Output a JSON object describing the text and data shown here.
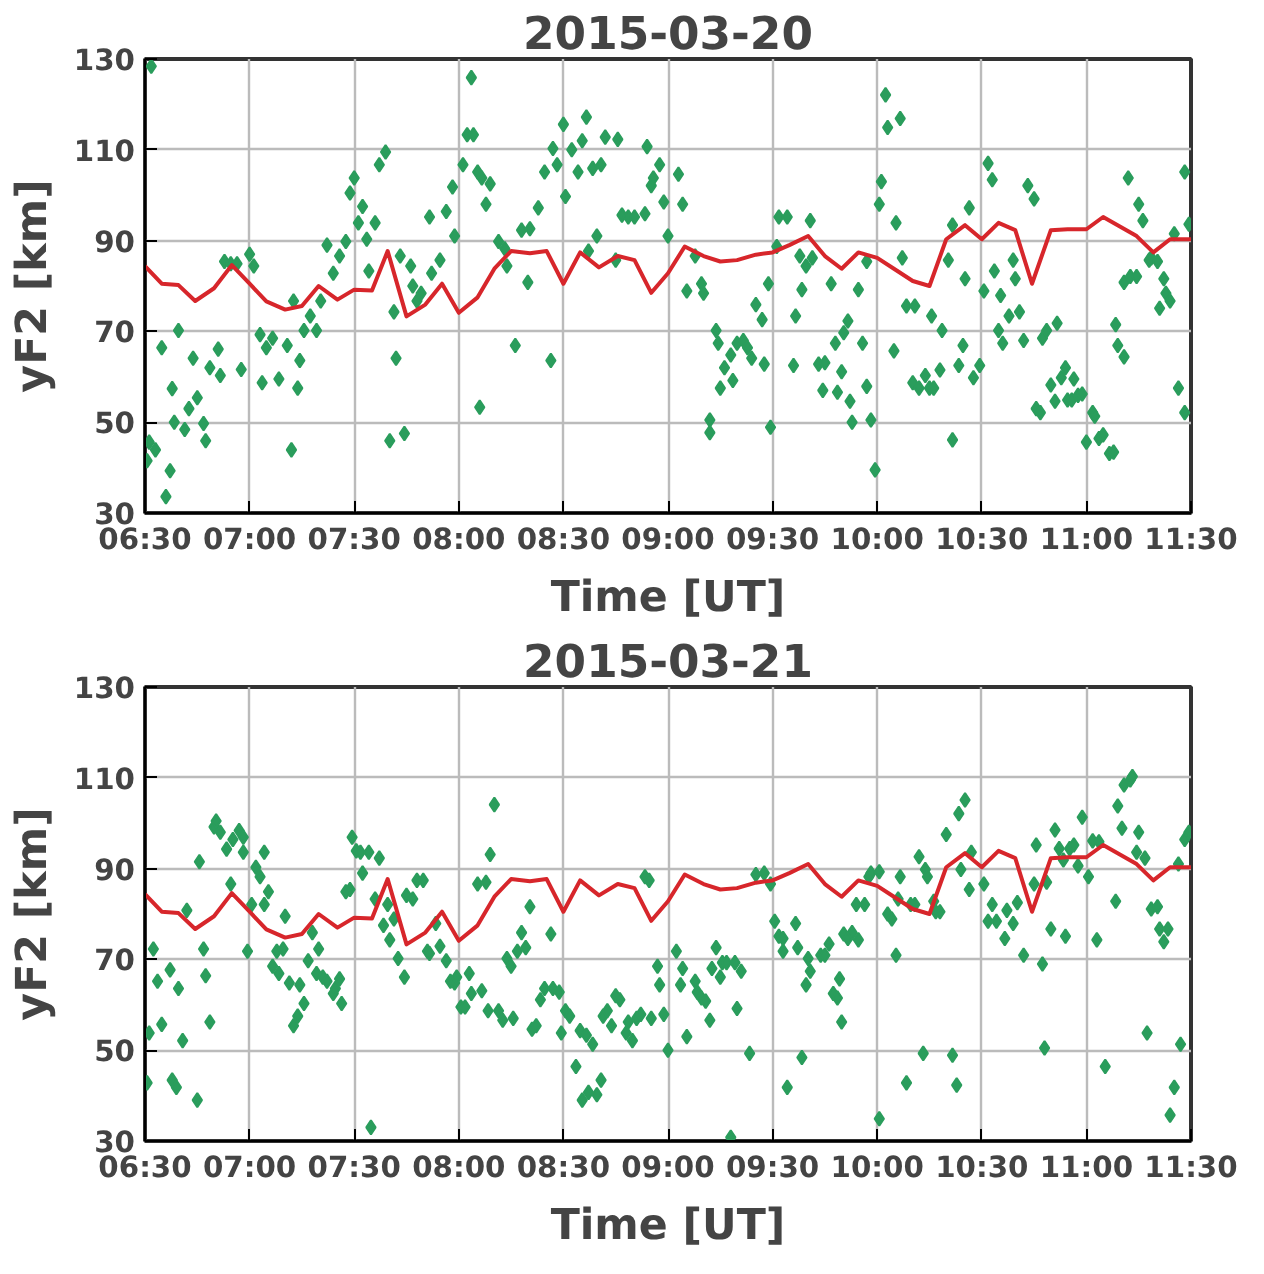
{
  "chart_data": [
    {
      "type": "scatter",
      "title": "2015-03-20",
      "xlabel": "Time [UT]",
      "ylabel": "yF2 [km]",
      "xlim": [
        6.5,
        11.5
      ],
      "ylim": [
        30,
        130
      ],
      "xticks": [
        {
          "value": 6.5,
          "label": "06:30"
        },
        {
          "value": 7.0,
          "label": "07:00"
        },
        {
          "value": 7.5,
          "label": "07:30"
        },
        {
          "value": 8.0,
          "label": "08:00"
        },
        {
          "value": 8.5,
          "label": "08:30"
        },
        {
          "value": 9.0,
          "label": "09:00"
        },
        {
          "value": 9.5,
          "label": "09:30"
        },
        {
          "value": 10.0,
          "label": "10:00"
        },
        {
          "value": 10.5,
          "label": "10:30"
        },
        {
          "value": 11.0,
          "label": "11:00"
        },
        {
          "value": 11.5,
          "label": "11:30"
        }
      ],
      "yticks": [
        30,
        50,
        70,
        90,
        110,
        130
      ],
      "grid": true,
      "line_style": "solid",
      "series": [
        {
          "marker": "diamond",
          "color": "#2a9d5c",
          "x": [
            6.53,
            6.52,
            6.55,
            6.51,
            6.6,
            6.62,
            6.58,
            6.63,
            6.64,
            6.66,
            6.69,
            6.71,
            6.73,
            6.75,
            6.78,
            6.79,
            6.81,
            6.85,
            6.86,
            6.88,
            6.91,
            6.94,
            6.96,
            7.0,
            7.02,
            7.05,
            7.06,
            7.08,
            7.11,
            7.14,
            7.18,
            7.2,
            7.21,
            7.23,
            7.24,
            7.26,
            7.29,
            7.32,
            7.34,
            7.37,
            7.4,
            7.43,
            7.46,
            7.48,
            7.5,
            7.52,
            7.54,
            7.56,
            7.57,
            7.6,
            7.62,
            7.65,
            7.67,
            7.69,
            7.7,
            7.72,
            7.74,
            7.77,
            7.78,
            7.8,
            7.82,
            7.86,
            7.87,
            7.91,
            7.94,
            7.97,
            7.98,
            8.02,
            8.04,
            8.06,
            8.07,
            8.1,
            8.09,
            8.11,
            8.13,
            8.15,
            8.19,
            8.22,
            8.23,
            8.27,
            8.3,
            8.33,
            8.34,
            8.38,
            8.41,
            8.44,
            8.45,
            8.47,
            8.5,
            8.51,
            8.54,
            8.57,
            8.59,
            8.61,
            8.62,
            8.64,
            8.66,
            8.68,
            8.7,
            8.75,
            8.76,
            8.78,
            8.81,
            8.84,
            8.89,
            8.9,
            8.92,
            8.93,
            8.96,
            8.98,
            9.0,
            9.05,
            9.07,
            9.09,
            9.13,
            9.16,
            9.17,
            9.2,
            9.2,
            9.23,
            9.24,
            9.25,
            9.27,
            9.3,
            9.31,
            9.33,
            9.36,
            9.38,
            9.4,
            9.42,
            9.45,
            9.46,
            9.48,
            9.49,
            9.52,
            9.53,
            9.57,
            9.6,
            9.61,
            9.63,
            9.64,
            9.66,
            9.68,
            9.69,
            9.72,
            9.74,
            9.75,
            9.78,
            9.8,
            9.81,
            9.83,
            9.84,
            9.86,
            9.87,
            9.88,
            9.91,
            9.93,
            9.95,
            9.95,
            9.97,
            9.99,
            10.01,
            10.02,
            10.04,
            10.05,
            10.09,
            10.11,
            10.12,
            10.08,
            10.14,
            10.17,
            10.18,
            10.2,
            10.23,
            10.25,
            10.26,
            10.27,
            10.3,
            10.31,
            10.34,
            10.36,
            10.36,
            10.39,
            10.41,
            10.42,
            10.44,
            10.46,
            10.49,
            10.51,
            10.53,
            10.55,
            10.56,
            10.58,
            10.59,
            10.6,
            10.63,
            10.65,
            10.66,
            10.68,
            10.7,
            10.72,
            10.75,
            10.76,
            10.78,
            10.79,
            10.81,
            10.83,
            10.85,
            10.86,
            10.88,
            10.9,
            10.91,
            10.93,
            10.94,
            10.96,
            10.98,
            11.0,
            11.03,
            11.04,
            11.06,
            11.08,
            11.11,
            11.13,
            11.14,
            11.15,
            11.18,
            11.18,
            11.2,
            11.21,
            11.24,
            11.25,
            11.27,
            11.3,
            11.31,
            11.34,
            11.35,
            11.37,
            11.38,
            11.4,
            11.42,
            11.44,
            11.47,
            11.47,
            11.49
          ],
          "values": [
            128.4,
            45.6,
            43.9,
            41.5,
            33.6,
            39.3,
            66.4,
            57.4,
            50,
            70.2,
            48.4,
            53,
            64.1,
            55.4,
            49.7,
            45.9,
            62,
            66.1,
            60.3,
            85.4,
            84.9,
            84.9,
            61.6,
            87,
            84.4,
            69.3,
            58.7,
            66.4,
            68.5,
            59.5,
            66.9,
            43.9,
            76.7,
            57.5,
            63.6,
            70.2,
            73.4,
            70.2,
            76.7,
            89,
            82.8,
            86.6,
            89.8,
            100.5,
            103.8,
            93.9,
            97.5,
            90.3,
            83.3,
            93.9,
            106.7,
            109.5,
            45.9,
            74.3,
            64.1,
            86.6,
            47.5,
            84.4,
            80,
            76.7,
            78.4,
            95.2,
            82.8,
            85.7,
            96.4,
            101.8,
            91,
            106.7,
            113.3,
            125.9,
            113.3,
            53.3,
            105.1,
            103.8,
            98,
            102.5,
            89.8,
            88.2,
            84.4,
            66.9,
            92.3,
            80.8,
            92.6,
            97.2,
            105.1,
            63.6,
            110.3,
            106.7,
            115.6,
            99.7,
            110,
            105.1,
            112,
            117.2,
            87.7,
            105.9,
            91,
            106.7,
            112.8,
            85.7,
            112.3,
            95.6,
            95.2,
            95.2,
            95.9,
            110.7,
            102.1,
            103.8,
            106.7,
            98.5,
            91,
            104.6,
            98,
            78.9,
            86.6,
            80.5,
            78.4,
            50.5,
            47.7,
            70.2,
            67.4,
            57.5,
            62,
            64.8,
            59.2,
            67.4,
            68,
            66.4,
            64.1,
            75.9,
            72.6,
            62.8,
            80.5,
            48.9,
            88.7,
            95.2,
            95.2,
            62.5,
            73.4,
            86.6,
            79.2,
            84.4,
            94.4,
            86.2,
            62.8,
            57,
            63.1,
            80.5,
            67.4,
            56.6,
            61.1,
            69.7,
            72.3,
            54.6,
            50,
            79.2,
            67.4,
            57.9,
            85.4,
            50.5,
            39.5,
            98,
            103,
            122.1,
            114.9,
            93.9,
            116.9,
            86.2,
            65.7,
            75.6,
            58.7,
            75.6,
            57.5,
            60.3,
            57.5,
            73.4,
            57.5,
            61.5,
            70.2,
            85.7,
            46.1,
            93.4,
            62.5,
            66.9,
            81.6,
            97.2,
            59.8,
            62.5,
            78.9,
            107,
            103.4,
            83.3,
            70.2,
            77.9,
            67.4,
            73.4,
            85.7,
            81.6,
            74.3,
            68,
            102.1,
            99.2,
            53,
            52.1,
            68.5,
            70.2,
            58.2,
            54.6,
            71.8,
            59.8,
            62,
            54.9,
            54.9,
            59.5,
            55.9,
            56.2,
            45.6,
            52.1,
            51.3,
            46.4,
            47.2,
            43.1,
            43.4,
            71.5,
            66.9,
            64.4,
            80.8,
            103.8,
            82.1,
            82.1,
            98,
            94.4,
            85.7,
            86.2,
            85.4,
            75.1,
            81.6,
            78.4,
            76.7,
            91.5,
            57.5,
            52.1,
            105.1,
            93.6
          ]
        },
        {
          "type": "line",
          "color": "#d7262b",
          "x": [
            6.5,
            6.58,
            6.66,
            6.74,
            6.83,
            6.915,
            7.0,
            7.08,
            7.17,
            7.25,
            7.33,
            7.42,
            7.5,
            7.585,
            7.66,
            7.75,
            7.84,
            7.92,
            8.0,
            8.09,
            8.17,
            8.25,
            8.34,
            8.42,
            8.5,
            8.58,
            8.67,
            8.76,
            8.84,
            8.92,
            9.0,
            9.08,
            9.17,
            9.25,
            9.33,
            9.42,
            9.5,
            9.58,
            9.67,
            9.75,
            9.83,
            9.91,
            10.0,
            10.08,
            10.17,
            10.25,
            10.33,
            10.42,
            10.5,
            10.58,
            10.66,
            10.74,
            10.83,
            10.91,
            11.0,
            11.08,
            11.16,
            11.24,
            11.32,
            11.4,
            11.5
          ],
          "values": [
            84.4,
            80.5,
            80.2,
            76.7,
            79.5,
            84.6,
            80.5,
            76.6,
            74.8,
            75.6,
            80,
            77,
            79.2,
            79,
            87.7,
            73.3,
            75.9,
            80.5,
            74.1,
            77.5,
            83.8,
            87.7,
            87.2,
            87.7,
            80.5,
            87.4,
            84.1,
            86.6,
            85.7,
            78.5,
            82.8,
            88.7,
            86.6,
            85.4,
            85.7,
            86.9,
            87.4,
            89,
            91,
            86.6,
            83.8,
            87.4,
            86.2,
            83.8,
            81.1,
            80,
            90.3,
            93.4,
            90.3,
            93.9,
            92.3,
            80.5,
            92.3,
            92.5,
            92.5,
            95.2,
            93.1,
            91,
            87.4,
            90.3,
            90.3
          ]
        }
      ]
    },
    {
      "type": "scatter",
      "title": "2015-03-21",
      "xlabel": "Time [UT]",
      "ylabel": "yF2 [km]",
      "xlim": [
        6.5,
        11.5
      ],
      "ylim": [
        30,
        130
      ],
      "xticks": [
        {
          "value": 6.5,
          "label": "06:30"
        },
        {
          "value": 7.0,
          "label": "07:00"
        },
        {
          "value": 7.5,
          "label": "07:30"
        },
        {
          "value": 8.0,
          "label": "08:00"
        },
        {
          "value": 8.5,
          "label": "08:30"
        },
        {
          "value": 9.0,
          "label": "09:00"
        },
        {
          "value": 9.5,
          "label": "09:30"
        },
        {
          "value": 10.0,
          "label": "10:00"
        },
        {
          "value": 10.5,
          "label": "10:30"
        },
        {
          "value": 11.0,
          "label": "11:00"
        },
        {
          "value": 11.5,
          "label": "11:30"
        }
      ],
      "yticks": [
        30,
        50,
        70,
        90,
        110,
        130
      ],
      "grid": true,
      "line_style": "solid",
      "series": [
        {
          "marker": "diamond",
          "color": "#2a9d5c",
          "x": [
            6.51,
            6.52,
            6.54,
            6.56,
            6.58,
            6.62,
            6.63,
            6.65,
            6.66,
            6.68,
            6.7,
            6.75,
            6.76,
            6.78,
            6.79,
            6.81,
            6.83,
            6.84,
            6.86,
            6.89,
            6.91,
            6.92,
            6.95,
            6.97,
            6.97,
            6.99,
            7.01,
            7.03,
            7.05,
            7.07,
            7.07,
            7.09,
            7.11,
            7.13,
            7.14,
            7.16,
            7.17,
            7.19,
            7.21,
            7.23,
            7.24,
            7.26,
            7.28,
            7.3,
            7.32,
            7.33,
            7.35,
            7.37,
            7.4,
            7.41,
            7.43,
            7.44,
            7.46,
            7.48,
            7.49,
            7.51,
            7.53,
            7.54,
            7.57,
            7.58,
            7.6,
            7.62,
            7.64,
            7.66,
            7.67,
            7.69,
            7.71,
            7.74,
            7.75,
            7.78,
            7.8,
            7.83,
            7.85,
            7.86,
            7.89,
            7.91,
            7.94,
            7.96,
            7.98,
            7.99,
            8.01,
            8.03,
            8.05,
            8.06,
            8.09,
            8.11,
            8.13,
            8.14,
            8.15,
            8.17,
            8.19,
            8.21,
            8.23,
            8.25,
            8.26,
            8.28,
            8.3,
            8.32,
            8.34,
            8.35,
            8.37,
            8.39,
            8.41,
            8.44,
            8.45,
            8.48,
            8.49,
            8.51,
            8.53,
            8.56,
            8.58,
            8.59,
            8.61,
            8.62,
            8.64,
            8.66,
            8.68,
            8.69,
            8.71,
            8.73,
            8.75,
            8.77,
            8.8,
            8.81,
            8.83,
            8.85,
            8.87,
            8.89,
            8.91,
            8.92,
            8.95,
            8.96,
            9.0,
            8.98,
            9.04,
            9.06,
            9.07,
            9.09,
            9.13,
            9.14,
            9.16,
            9.18,
            9.2,
            9.21,
            9.23,
            9.25,
            9.26,
            9.28,
            9.3,
            9.32,
            9.33,
            9.35,
            9.39,
            9.42,
            9.46,
            9.49,
            9.51,
            9.53,
            9.55,
            9.55,
            9.57,
            9.61,
            9.62,
            9.64,
            9.66,
            9.67,
            9.68,
            9.73,
            9.75,
            9.77,
            9.79,
            9.81,
            9.82,
            9.83,
            9.84,
            9.86,
            9.88,
            9.9,
            9.91,
            9.94,
            9.96,
            9.97,
            10.01,
            10.01,
            10.05,
            10.07,
            10.09,
            10.1,
            10.11,
            10.14,
            10.16,
            10.18,
            10.2,
            10.22,
            10.23,
            10.24,
            10.27,
            10.28,
            10.3,
            10.33,
            10.36,
            10.38,
            10.39,
            10.4,
            10.42,
            10.44,
            10.45,
            10.51,
            10.53,
            10.55,
            10.57,
            10.61,
            10.62,
            10.65,
            10.67,
            10.7,
            10.75,
            10.76,
            10.79,
            10.8,
            10.81,
            10.83,
            10.85,
            10.87,
            10.89,
            10.9,
            10.92,
            10.94,
            10.96,
            10.98,
            11.01,
            11.03,
            11.05,
            11.06,
            11.09,
            11.14,
            11.15,
            11.17,
            11.18,
            11.21,
            11.22,
            11.24,
            11.25,
            11.28,
            11.29,
            11.31,
            11.34,
            11.35,
            11.37,
            11.39,
            11.4,
            11.42,
            11.44,
            11.45,
            11.47,
            11.49
          ],
          "values": [
            42.8,
            53.8,
            72.3,
            65.2,
            55.7,
            67.7,
            43.4,
            41.8,
            63.6,
            52.1,
            80.8,
            39,
            91.5,
            72.3,
            66.4,
            56.2,
            99.2,
            100.5,
            98,
            94.3,
            86.6,
            96.4,
            98.4,
            93.6,
            96.9,
            71.8,
            82.1,
            90.3,
            88.2,
            93.6,
            82.1,
            84.9,
            68.5,
            71.8,
            66.9,
            72.3,
            79.5,
            64.8,
            55.4,
            57.5,
            64.4,
            60.3,
            69.7,
            75.9,
            66.9,
            72.3,
            66.1,
            65.2,
            62.5,
            63.6,
            65.7,
            60.3,
            84.9,
            85.4,
            96.9,
            93.9,
            93.6,
            89,
            93.6,
            33,
            83.3,
            92.3,
            77.5,
            82.1,
            74.3,
            78.9,
            70.2,
            66.1,
            84.1,
            83.3,
            87.4,
            87.4,
            71.8,
            71.3,
            77.9,
            72.9,
            69.7,
            65.2,
            64.8,
            66.1,
            59.5,
            59.5,
            66.9,
            62.5,
            86.6,
            63.1,
            87,
            58.7,
            93.1,
            104.1,
            58.7,
            56.6,
            70.2,
            68.5,
            57,
            71.8,
            75.9,
            72.6,
            81.6,
            54.6,
            55.4,
            61.1,
            63.6,
            75.6,
            63.6,
            62.8,
            53.8,
            58.7,
            57.5,
            46.4,
            54.3,
            39,
            53.3,
            40.7,
            51.3,
            40.2,
            43.4,
            57.5,
            58.7,
            55.4,
            62,
            61.1,
            53.8,
            56.2,
            52.1,
            57,
            57.9,
            88.2,
            87.4,
            57,
            68.5,
            64.4,
            50,
            57.9,
            71.8,
            64.4,
            68,
            53,
            65.2,
            62.8,
            61.5,
            60.8,
            56.6,
            68,
            72.6,
            66.1,
            69.3,
            69.3,
            30.8,
            69.3,
            59.2,
            67.4,
            49.3,
            88.7,
            89,
            86.6,
            78.4,
            75.1,
            71.8,
            74.6,
            41.8,
            77.9,
            72.6,
            48.4,
            64.4,
            70.2,
            67.4,
            70.9,
            70.9,
            73.4,
            62.5,
            61.5,
            65.7,
            56.2,
            75.6,
            74.6,
            75.9,
            82.1,
            74.3,
            82.1,
            88.2,
            89,
            89.3,
            34.9,
            80,
            78.9,
            70.9,
            83.3,
            88.2,
            42.8,
            82.1,
            82.1,
            92.6,
            49.3,
            89.8,
            88.2,
            82.8,
            80.5,
            80.5,
            97.5,
            48.9,
            42.3,
            102.1,
            89.8,
            105.1,
            85.4,
            93.6,
            86.6,
            78.4,
            82.1,
            78.4,
            74.6,
            80.8,
            77.9,
            82.5,
            70.9,
            86.6,
            95.2,
            69,
            50.5,
            87,
            76.7,
            98.5,
            94.4,
            91.9,
            75.1,
            94.4,
            95.2,
            90.6,
            101.3,
            88.2,
            96.1,
            74.3,
            95.9,
            46.4,
            82.8,
            103.8,
            98.9,
            108.4,
            109.5,
            110.3,
            93.6,
            98,
            92.3,
            53.8,
            81.1,
            81.6,
            76.7,
            73.9,
            76.7,
            35.7,
            41.8,
            91,
            51.3,
            96.4,
            98
          ]
        },
        {
          "type": "line",
          "color": "#d7262b",
          "x": [
            6.5,
            6.58,
            6.66,
            6.74,
            6.83,
            6.915,
            7.0,
            7.08,
            7.17,
            7.25,
            7.33,
            7.42,
            7.5,
            7.585,
            7.66,
            7.75,
            7.84,
            7.92,
            8.0,
            8.09,
            8.17,
            8.25,
            8.34,
            8.42,
            8.5,
            8.58,
            8.67,
            8.76,
            8.84,
            8.92,
            9.0,
            9.08,
            9.17,
            9.25,
            9.33,
            9.42,
            9.5,
            9.58,
            9.67,
            9.75,
            9.83,
            9.91,
            10.0,
            10.08,
            10.17,
            10.25,
            10.33,
            10.42,
            10.5,
            10.58,
            10.66,
            10.74,
            10.83,
            10.91,
            11.0,
            11.08,
            11.16,
            11.24,
            11.32,
            11.4,
            11.5
          ],
          "values": [
            84.4,
            80.5,
            80.2,
            76.7,
            79.5,
            84.6,
            80.5,
            76.6,
            74.8,
            75.6,
            80,
            77,
            79.2,
            79,
            87.7,
            73.3,
            75.9,
            80.5,
            74.1,
            77.5,
            83.8,
            87.7,
            87.2,
            87.7,
            80.5,
            87.4,
            84.1,
            86.6,
            85.7,
            78.5,
            82.8,
            88.7,
            86.6,
            85.4,
            85.7,
            86.9,
            87.4,
            89,
            91,
            86.6,
            83.8,
            87.4,
            86.2,
            83.8,
            81.1,
            80,
            90.3,
            93.4,
            90.3,
            93.9,
            92.3,
            80.5,
            92.3,
            92.5,
            92.5,
            95.2,
            93.1,
            91,
            87.4,
            90.3,
            90.3
          ]
        }
      ]
    }
  ]
}
